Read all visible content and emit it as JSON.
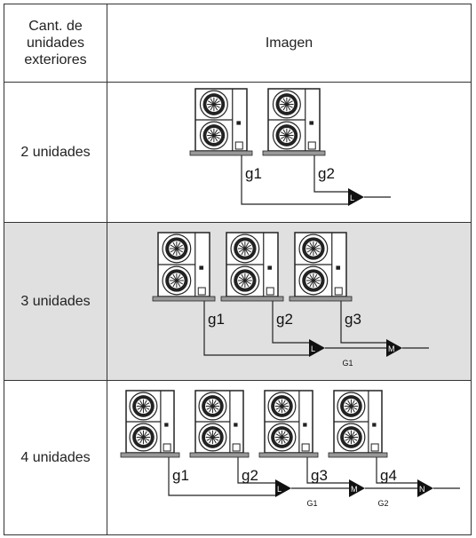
{
  "header": {
    "col1": "Cant. de unidades exteriores",
    "col2": "Imagen"
  },
  "rows": [
    {
      "label": "2 unidades",
      "pipes": [
        "g1",
        "g2"
      ],
      "joints": [
        "L"
      ],
      "mains": []
    },
    {
      "label": "3 unidades",
      "pipes": [
        "g1",
        "g2",
        "g3"
      ],
      "joints": [
        "L",
        "M"
      ],
      "mains": [
        "G1"
      ]
    },
    {
      "label": "4 unidades",
      "pipes": [
        "g1",
        "g2",
        "g3",
        "g4"
      ],
      "joints": [
        "L",
        "M",
        "N"
      ],
      "mains": [
        "G1",
        "G2"
      ]
    }
  ]
}
